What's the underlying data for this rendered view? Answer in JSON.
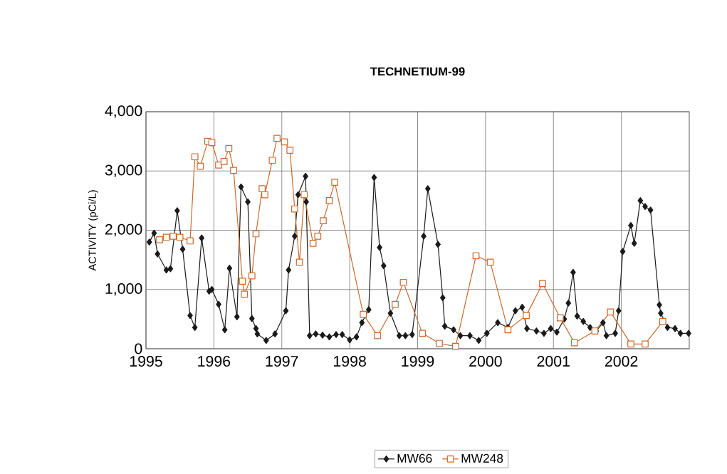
{
  "chart_data": {
    "type": "line",
    "title": "TECHNETIUM-99",
    "ylabel": "ACTIVITY (pCi/L)",
    "xlim": [
      1995,
      2003
    ],
    "xticks": [
      1995,
      1996,
      1997,
      1998,
      1999,
      2000,
      2001,
      2002
    ],
    "ylim": [
      0,
      4000
    ],
    "yticks": [
      {
        "value": 0,
        "label": "0"
      },
      {
        "value": 1000,
        "label": "1,000"
      },
      {
        "value": 2000,
        "label": "2,000"
      },
      {
        "value": 3000,
        "label": "3,000"
      },
      {
        "value": 4000,
        "label": "4,000"
      }
    ],
    "grid": true,
    "legend": "bottom",
    "line_style": "solid",
    "series": [
      {
        "name": "MW66",
        "color": "#1a1a1a",
        "marker": "diamond",
        "x": [
          1995.05,
          1995.12,
          1995.17,
          1995.3,
          1995.36,
          1995.46,
          1995.54,
          1995.65,
          1995.72,
          1995.82,
          1995.93,
          1995.97,
          1996.07,
          1996.16,
          1996.23,
          1996.34,
          1996.4,
          1996.5,
          1996.56,
          1996.62,
          1996.64,
          1996.77,
          1996.9,
          1997.06,
          1997.1,
          1997.19,
          1997.24,
          1997.35,
          1997.36,
          1997.41,
          1997.5,
          1997.6,
          1997.7,
          1997.8,
          1997.89,
          1998.0,
          1998.1,
          1998.18,
          1998.28,
          1998.36,
          1998.44,
          1998.5,
          1998.6,
          1998.73,
          1998.82,
          1998.92,
          1999.09,
          1999.15,
          1999.3,
          1999.37,
          1999.4,
          1999.53,
          1999.63,
          1999.77,
          1999.9,
          2000.02,
          2000.18,
          2000.33,
          2000.44,
          2000.54,
          2000.61,
          2000.75,
          2000.86,
          2000.96,
          2001.05,
          2001.16,
          2001.22,
          2001.29,
          2001.35,
          2001.44,
          2001.54,
          2001.63,
          2001.73,
          2001.78,
          2001.91,
          2001.96,
          2002.02,
          2002.14,
          2002.19,
          2002.28,
          2002.35,
          2002.43,
          2002.56,
          2002.58,
          2002.68,
          2002.79,
          2002.87,
          2002.99
        ],
        "values": [
          1800,
          1950,
          1600,
          1330,
          1350,
          2330,
          1680,
          560,
          360,
          1870,
          970,
          1000,
          750,
          320,
          1360,
          540,
          2730,
          2480,
          510,
          340,
          250,
          140,
          250,
          640,
          1330,
          1900,
          2600,
          2910,
          2480,
          220,
          250,
          230,
          200,
          240,
          240,
          150,
          200,
          440,
          660,
          2890,
          1710,
          1400,
          600,
          220,
          220,
          240,
          1900,
          2700,
          1760,
          860,
          380,
          320,
          220,
          220,
          140,
          260,
          440,
          360,
          640,
          700,
          340,
          300,
          260,
          340,
          280,
          500,
          770,
          1290,
          550,
          460,
          360,
          300,
          440,
          220,
          260,
          640,
          1640,
          2080,
          1780,
          2500,
          2400,
          2340,
          740,
          600,
          360,
          340,
          260,
          260
        ]
      },
      {
        "name": "MW248",
        "color": "#cc6a2e",
        "marker": "square",
        "x": [
          1995.2,
          1995.3,
          1995.4,
          1995.5,
          1995.65,
          1995.72,
          1995.8,
          1995.91,
          1995.97,
          1996.07,
          1996.15,
          1996.22,
          1996.29,
          1996.42,
          1996.45,
          1996.56,
          1996.62,
          1996.71,
          1996.75,
          1996.86,
          1996.93,
          1997.04,
          1997.12,
          1997.19,
          1997.26,
          1997.33,
          1997.46,
          1997.53,
          1997.61,
          1997.7,
          1997.78,
          1998.2,
          1998.41,
          1998.67,
          1998.79,
          1999.07,
          1999.32,
          1999.56,
          1999.86,
          2000.07,
          2000.33,
          2000.6,
          2000.84,
          2001.1,
          2001.31,
          2001.61,
          2001.84,
          2002.14,
          2002.35,
          2002.61
        ],
        "values": [
          1840,
          1880,
          1900,
          1880,
          1820,
          3240,
          3080,
          3500,
          3480,
          3100,
          3160,
          3380,
          3010,
          1140,
          920,
          1230,
          1940,
          2700,
          2600,
          3180,
          3550,
          3490,
          3350,
          2360,
          1460,
          2600,
          1780,
          1900,
          2160,
          2500,
          2810,
          580,
          220,
          750,
          1120,
          260,
          90,
          40,
          1570,
          1460,
          320,
          560,
          1100,
          520,
          100,
          300,
          620,
          80,
          80,
          460
        ]
      }
    ]
  }
}
